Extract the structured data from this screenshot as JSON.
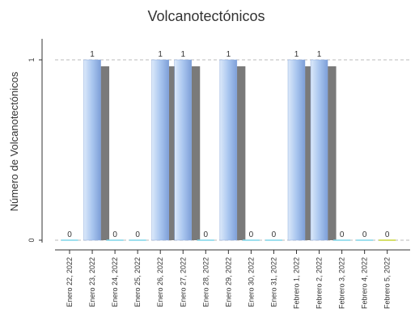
{
  "chart_data": {
    "type": "bar",
    "title": "Volcanotectónicos",
    "xlabel": "",
    "ylabel": "Número de Volcanotectónicos",
    "ylim": [
      0,
      1
    ],
    "yticks": [
      0,
      1
    ],
    "grid": "dashed horizontal at y ticks",
    "legend": "none",
    "categories": [
      "Enero 22, 2022",
      "Enero 23, 2022",
      "Enero 24, 2022",
      "Enero 25, 2022",
      "Enero 26, 2022",
      "Enero 27, 2022",
      "Enero 28, 2022",
      "Enero 29, 2022",
      "Enero 30, 2022",
      "Enero 31, 2022",
      "Febrero 1, 2022",
      "Febrero 2, 2022",
      "Febrero 3, 2022",
      "Febrero 4, 2022",
      "Febrero 5, 2022"
    ],
    "values": [
      0,
      1,
      0,
      0,
      1,
      1,
      0,
      1,
      0,
      0,
      1,
      1,
      0,
      0,
      0
    ],
    "data_labels": [
      "0",
      "1",
      "0",
      "0",
      "1",
      "1",
      "0",
      "1",
      "0",
      "0",
      "1",
      "1",
      "0",
      "0",
      "0"
    ],
    "colors": {
      "bar_light": "#dce9fa",
      "bar_mid": "#a9c6ef",
      "bar_dark": "#7e9fd8",
      "shadow": "#7a7a7a",
      "zero_line": "#7fd6e8",
      "zero_line_last": "#c8d63a",
      "grid": "#bbbbbb",
      "axis": "#333333",
      "text": "#333333"
    }
  }
}
